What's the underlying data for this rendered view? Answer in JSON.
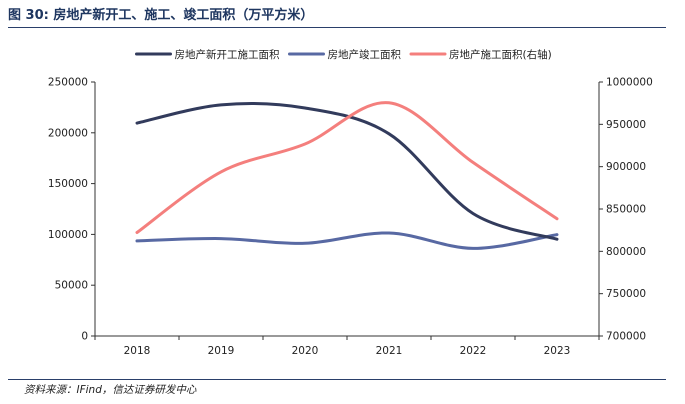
{
  "figure": {
    "title": "图 30:  房地产新开工、施工、竣工面积（万平方米）",
    "source": "资料来源：IFind，信达证券研发中心"
  },
  "chart_data": {
    "type": "line",
    "title": "",
    "xlabel": "",
    "ylabel": "",
    "y2label": "",
    "categories": [
      "2018",
      "2019",
      "2020",
      "2021",
      "2022",
      "2023"
    ],
    "ylim": [
      0,
      250000
    ],
    "y_ticks": [
      "0",
      "50000",
      "100000",
      "150000",
      "200000",
      "250000"
    ],
    "y2lim": [
      700000,
      1000000
    ],
    "y2_ticks": [
      "700000",
      "750000",
      "800000",
      "850000",
      "900000",
      "950000",
      "1000000"
    ],
    "legend_position": "top",
    "grid": false,
    "series": [
      {
        "name": "房地产新开工施工面积",
        "axis": "left",
        "color": "#323b5c",
        "values": [
          209500,
          227500,
          224400,
          199000,
          120600,
          95300
        ]
      },
      {
        "name": "房地产竣工面积",
        "axis": "left",
        "color": "#5869a3",
        "values": [
          93600,
          95900,
          91200,
          101400,
          86200,
          99800
        ]
      },
      {
        "name": "房地产施工面积(右轴)",
        "axis": "right",
        "color": "#f47f7d",
        "values": [
          822300,
          893800,
          926800,
          975400,
          904999,
          838400
        ]
      }
    ]
  }
}
